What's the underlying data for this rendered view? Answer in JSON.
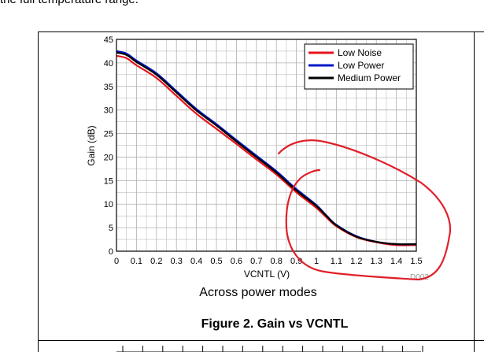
{
  "top_text": "the full temperature range.",
  "figure": {
    "caption_sub": "Across power modes",
    "caption_main": "Figure 2. Gain vs VCNTL",
    "plot_id": "D002"
  },
  "colors": {
    "low_noise": "#e8141c",
    "low_power": "#0018c8",
    "medium_power": "#000000",
    "annotation": "#e0202a",
    "grid": "#b0b0b0"
  },
  "chart_data": {
    "type": "line",
    "title": "",
    "xlabel": "VCNTL (V)",
    "ylabel": "Gain (dB)",
    "xlim": [
      0,
      1.5
    ],
    "ylim": [
      0,
      45
    ],
    "x_ticks": [
      0,
      0.1,
      0.2,
      0.3,
      0.4,
      0.5,
      0.6,
      0.7,
      0.8,
      0.9,
      1,
      1.1,
      1.2,
      1.3,
      1.4,
      1.5
    ],
    "x_tick_labels": [
      "0",
      "0.1",
      "0.2",
      "0.3",
      "0.4",
      "0.5",
      "0.6",
      "0.7",
      "0.8",
      "0.9",
      "1",
      "1.1",
      "1.2",
      "1.3",
      "1.4",
      "1.5"
    ],
    "y_ticks": [
      0,
      5,
      10,
      15,
      20,
      25,
      30,
      35,
      40,
      45
    ],
    "y_tick_labels": [
      "0",
      "5",
      "10",
      "15",
      "20",
      "25",
      "30",
      "35",
      "40",
      "45"
    ],
    "grid": true,
    "legend_position": "top-right",
    "series": [
      {
        "name": "Low Noise",
        "color": "#e8141c",
        "x": [
          0,
          0.05,
          0.1,
          0.2,
          0.3,
          0.4,
          0.5,
          0.6,
          0.7,
          0.8,
          0.9,
          1.0,
          1.05,
          1.1,
          1.2,
          1.3,
          1.4,
          1.5
        ],
        "y": [
          41.5,
          41.0,
          39.5,
          36.8,
          33.0,
          29.2,
          26.0,
          22.8,
          19.5,
          16.3,
          12.5,
          9.2,
          7.2,
          5.3,
          3.0,
          1.9,
          1.3,
          1.3
        ]
      },
      {
        "name": "Low Power",
        "color": "#0018c8",
        "x": [
          0,
          0.05,
          0.1,
          0.2,
          0.3,
          0.4,
          0.5,
          0.6,
          0.7,
          0.8,
          0.9,
          1.0,
          1.05,
          1.1,
          1.2,
          1.3,
          1.4,
          1.5
        ],
        "y": [
          42.5,
          42.0,
          40.5,
          37.8,
          34.0,
          30.2,
          27.0,
          23.6,
          20.3,
          17.0,
          13.2,
          9.8,
          7.6,
          5.6,
          3.2,
          2.0,
          1.5,
          1.5
        ]
      },
      {
        "name": "Medium Power",
        "color": "#000000",
        "x": [
          0,
          0.05,
          0.1,
          0.2,
          0.3,
          0.4,
          0.5,
          0.6,
          0.7,
          0.8,
          0.9,
          1.0,
          1.05,
          1.1,
          1.2,
          1.3,
          1.4,
          1.5
        ],
        "y": [
          42.2,
          41.7,
          40.2,
          37.5,
          33.7,
          29.9,
          26.7,
          23.3,
          20.0,
          16.7,
          12.9,
          9.6,
          7.5,
          5.5,
          3.1,
          2.0,
          1.5,
          1.5
        ]
      }
    ]
  }
}
